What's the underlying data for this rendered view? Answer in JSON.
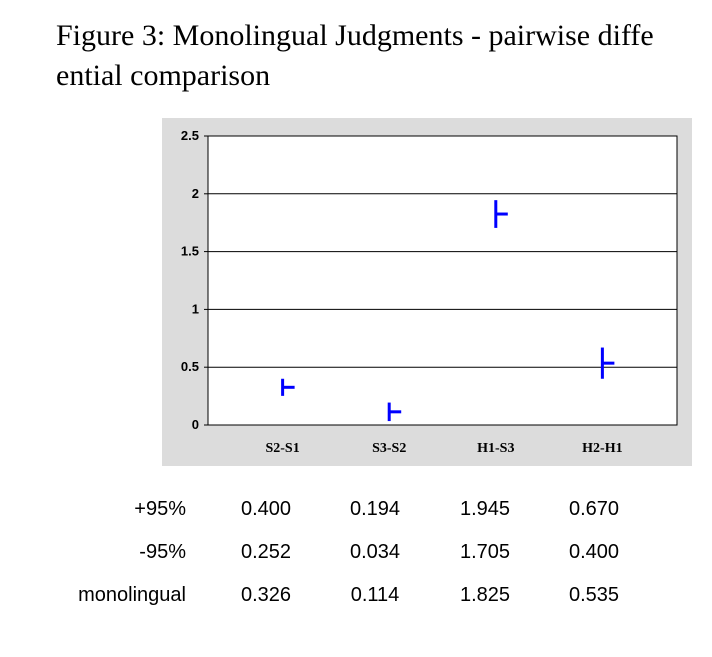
{
  "figure": {
    "title_line1": "Figure 3: Monolingual Judgments - pairwise diffe",
    "title_line2": "ential comparison"
  },
  "chart_data": {
    "type": "error-bar",
    "categories": [
      "S2-S1",
      "S3-S2",
      "H1-S3",
      "H2-H1"
    ],
    "ylim": [
      0,
      2.5
    ],
    "yticks": [
      "0",
      "0.5",
      "1",
      "1.5",
      "2",
      "2.5"
    ],
    "grid": true,
    "series": [
      {
        "name": "+95%",
        "values": [
          0.4,
          0.194,
          1.945,
          0.67
        ]
      },
      {
        "name": "-95%",
        "values": [
          0.252,
          0.034,
          1.705,
          0.4
        ]
      },
      {
        "name": "monolingual",
        "values": [
          0.326,
          0.114,
          1.825,
          0.535
        ]
      }
    ],
    "colors": {
      "marker": "#0000ff",
      "plot_bg": "#ffffff",
      "frame_bg": "#dcdcdc",
      "grid": "#000000"
    }
  },
  "table": {
    "rows": [
      {
        "label": "+95%",
        "values": [
          "0.400",
          "0.194",
          "1.945",
          "0.670"
        ]
      },
      {
        "label": "-95%",
        "values": [
          "0.252",
          "0.034",
          "1.705",
          "0.400"
        ]
      },
      {
        "label": "monolingual",
        "values": [
          "0.326",
          "0.114",
          "1.825",
          "0.535"
        ]
      }
    ]
  }
}
